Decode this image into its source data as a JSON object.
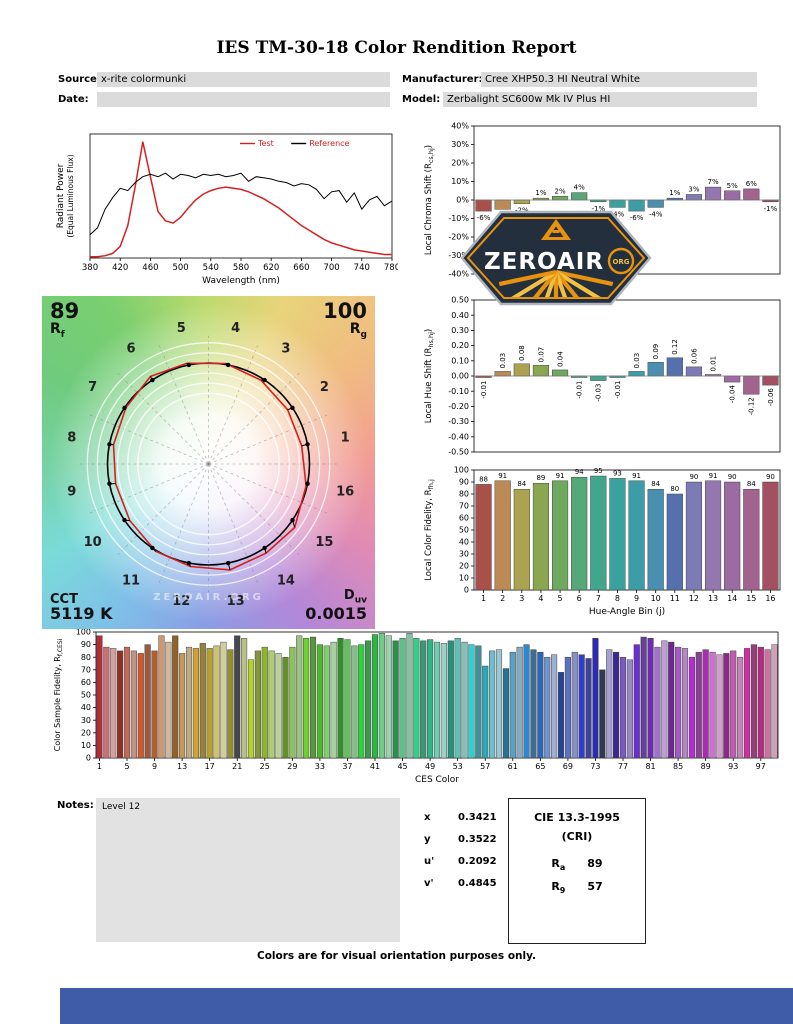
{
  "report": {
    "title": "IES TM-30-18 Color Rendition Report",
    "fields": {
      "source_label": "Source:",
      "source_value": "x-rite colormunki",
      "date_label": "Date:",
      "date_value": "",
      "manufacturer_label": "Manufacturer:",
      "manufacturer_value": "Cree XHP50.3 HI Neutral White",
      "model_label": "Model:",
      "model_value": "Zerbalight SC600w Mk IV Plus HI"
    },
    "notes_label": "Notes:",
    "notes_value": "Level 12",
    "footer": "Colors are for visual orientation purposes only."
  },
  "logo": {
    "text": "ZEROAIR",
    "suffix": "ORG",
    "navy": "#232F3D",
    "orange": "#E8930F",
    "gold": "#F2BF45"
  },
  "cvg": {
    "r_label": "R",
    "rf_value": "89",
    "rf_sub": "f",
    "rg_value": "100",
    "rg_sub": "g",
    "cct_label": "CCT",
    "cct_value": "5119 K",
    "duv_label": "D",
    "duv_sub": "uv",
    "duv_value": "0.0015",
    "bins": [
      "1",
      "2",
      "3",
      "4",
      "5",
      "6",
      "7",
      "8",
      "9",
      "10",
      "11",
      "12",
      "13",
      "14",
      "15",
      "16"
    ],
    "test_radii": [
      0.94,
      0.95,
      0.98,
      1.01,
      1.02,
      1.04,
      0.99,
      0.96,
      0.94,
      0.96,
      1.01,
      1.03,
      1.07,
      1.05,
      1.06,
      0.99
    ],
    "watermark": "ZEROAIR.ORG"
  },
  "chromaticity": {
    "rows": [
      {
        "label": "x",
        "value": "0.3421"
      },
      {
        "label": "y",
        "value": "0.3522"
      },
      {
        "label": "u'",
        "value": "0.2092"
      },
      {
        "label": "v'",
        "value": "0.4845"
      }
    ]
  },
  "cie": {
    "line1": "CIE 13.3-1995",
    "line2": "(CRI)",
    "rows": [
      {
        "label": "R",
        "sub": "a",
        "value": "89"
      },
      {
        "label": "R",
        "sub": "9",
        "value": "57"
      }
    ]
  },
  "bin_colors": [
    "#A9504A",
    "#BC8A54",
    "#ABA351",
    "#8BA650",
    "#6FA85F",
    "#57A878",
    "#42A68C",
    "#39A29E",
    "#3C9DA8",
    "#4B8FB0",
    "#5571AD",
    "#7D7BB5",
    "#9377AE",
    "#9C6BA4",
    "#A2638E",
    "#A25062"
  ],
  "chart_data": [
    {
      "id": "spd",
      "type": "line",
      "xlabel": "Wavelength (nm)",
      "ylabel_lines": [
        "Radiant Power",
        "(Equal Luminous Flux)"
      ],
      "x": [
        380,
        390,
        400,
        410,
        420,
        430,
        440,
        450,
        460,
        470,
        480,
        490,
        500,
        510,
        520,
        530,
        540,
        550,
        560,
        570,
        580,
        590,
        600,
        610,
        620,
        630,
        640,
        650,
        660,
        670,
        680,
        690,
        700,
        710,
        720,
        730,
        740,
        750,
        760,
        770,
        780
      ],
      "xticks": [
        380,
        420,
        460,
        500,
        540,
        580,
        620,
        660,
        700,
        740,
        780
      ],
      "ylim": [
        0,
        1.05
      ],
      "legend_text_color": "#CC2222",
      "series": [
        {
          "name": "Test",
          "color": "#D62020",
          "values": [
            0.01,
            0.01,
            0.02,
            0.04,
            0.1,
            0.28,
            0.62,
            1.0,
            0.7,
            0.4,
            0.32,
            0.3,
            0.35,
            0.43,
            0.5,
            0.55,
            0.58,
            0.6,
            0.61,
            0.6,
            0.59,
            0.57,
            0.54,
            0.51,
            0.47,
            0.43,
            0.38,
            0.33,
            0.28,
            0.24,
            0.2,
            0.16,
            0.13,
            0.11,
            0.09,
            0.07,
            0.06,
            0.05,
            0.04,
            0.03,
            0.03
          ]
        },
        {
          "name": "Reference",
          "color": "#000000",
          "values": [
            0.2,
            0.26,
            0.42,
            0.52,
            0.6,
            0.58,
            0.65,
            0.7,
            0.72,
            0.7,
            0.73,
            0.68,
            0.72,
            0.71,
            0.69,
            0.72,
            0.71,
            0.72,
            0.7,
            0.71,
            0.73,
            0.66,
            0.7,
            0.69,
            0.68,
            0.66,
            0.65,
            0.62,
            0.64,
            0.63,
            0.59,
            0.51,
            0.57,
            0.58,
            0.48,
            0.56,
            0.42,
            0.5,
            0.53,
            0.45,
            0.49
          ]
        }
      ]
    },
    {
      "id": "chroma",
      "type": "bar",
      "ylabel_main": "Local Chroma Shift (R",
      "ylabel_sub": "cs,hj",
      "ylabel_end": ")",
      "ylim": [
        -40,
        40
      ],
      "yticks": [
        "40%",
        "30%",
        "20%",
        "10%",
        "0%",
        "-10%",
        "-20%",
        "-30%",
        "-40%"
      ],
      "categories": [
        1,
        2,
        3,
        4,
        5,
        6,
        7,
        8,
        9,
        10,
        11,
        12,
        13,
        14,
        15,
        16
      ],
      "values": [
        -6,
        -5,
        -2,
        1,
        2,
        4,
        -1,
        -4,
        -6,
        -4,
        1,
        3,
        7,
        5,
        6,
        -1
      ],
      "labels": [
        "-6%",
        "-5%",
        "-2%",
        "1%",
        "2%",
        "4%",
        "-1%",
        "-4%",
        "-6%",
        "-4%",
        "1%",
        "3%",
        "7%",
        "5%",
        "6%",
        "-1%"
      ]
    },
    {
      "id": "hueshift",
      "type": "bar",
      "ylabel_main": "Local Hue Shift (R",
      "ylabel_sub": "hs,hj",
      "ylabel_end": ")",
      "ylim": [
        -0.5,
        0.5
      ],
      "yticks": [
        "0.50",
        "0.40",
        "0.30",
        "0.20",
        "0.10",
        "0.00",
        "-0.10",
        "-0.20",
        "-0.30",
        "-0.40",
        "-0.50"
      ],
      "categories": [
        1,
        2,
        3,
        4,
        5,
        6,
        7,
        8,
        9,
        10,
        11,
        12,
        13,
        14,
        15,
        16
      ],
      "values": [
        -0.01,
        0.03,
        0.08,
        0.07,
        0.04,
        -0.01,
        -0.03,
        -0.01,
        0.03,
        0.09,
        0.12,
        0.06,
        0.01,
        -0.04,
        -0.12,
        -0.06
      ],
      "labels": [
        "-0.01",
        "0.03",
        "0.08",
        "0.07",
        "0.04",
        "-0.01",
        "-0.03",
        "-0.01",
        "0.03",
        "0.09",
        "0.12",
        "0.06",
        "0.01",
        "-0.04",
        "-0.12",
        "-0.06"
      ]
    },
    {
      "id": "fidelity",
      "type": "bar",
      "ylabel_main": "Local Color Fidelity, R",
      "ylabel_sub": "fh,j",
      "ylabel_end": "",
      "xlabel": "Hue-Angle Bin (j)",
      "ylim": [
        0,
        100
      ],
      "yticks": [
        "100",
        "90",
        "80",
        "70",
        "60",
        "50",
        "40",
        "30",
        "20",
        "10",
        "0"
      ],
      "xticks": [
        "1",
        "2",
        "3",
        "4",
        "5",
        "6",
        "7",
        "8",
        "9",
        "10",
        "11",
        "12",
        "13",
        "14",
        "15",
        "16"
      ],
      "values": [
        88,
        91,
        84,
        89,
        91,
        94,
        95,
        93,
        91,
        84,
        80,
        90,
        91,
        90,
        84,
        90
      ],
      "labels": [
        "88",
        "91",
        "84",
        "89",
        "91",
        "94",
        "95",
        "93",
        "91",
        "84",
        "80",
        "90",
        "91",
        "90",
        "84",
        "90"
      ]
    },
    {
      "id": "ces",
      "type": "bar",
      "ylabel_main": "Color Sample Fidelity, R",
      "ylabel_sub": "f,CESi",
      "ylabel_end": "",
      "xlabel": "CES Color",
      "ylim": [
        0,
        100
      ],
      "yticks": [
        "100",
        "90",
        "80",
        "70",
        "60",
        "50",
        "40",
        "30",
        "20",
        "10",
        "0"
      ],
      "xticks": [
        "1",
        "5",
        "9",
        "13",
        "17",
        "21",
        "25",
        "29",
        "33",
        "37",
        "41",
        "45",
        "49",
        "53",
        "57",
        "61",
        "65",
        "69",
        "73",
        "77",
        "81",
        "85",
        "89",
        "93",
        "97"
      ],
      "values": [
        97,
        88,
        87,
        85,
        88,
        85,
        83,
        90,
        85,
        97,
        92,
        97,
        83,
        88,
        87,
        91,
        87,
        89,
        92,
        86,
        97,
        95,
        78,
        85,
        88,
        85,
        83,
        80,
        88,
        97,
        95,
        96,
        90,
        89,
        92,
        95,
        94,
        89,
        90,
        93,
        98,
        99,
        97,
        93,
        95,
        99,
        95,
        93,
        94,
        92,
        91,
        93,
        95,
        92,
        90,
        89,
        73,
        85,
        86,
        71,
        84,
        88,
        90,
        86,
        84,
        80,
        82,
        68,
        80,
        84,
        82,
        79,
        95,
        70,
        86,
        84,
        80,
        78,
        90,
        96,
        95,
        88,
        93,
        92,
        88,
        87,
        80,
        84,
        86,
        84,
        82,
        83,
        85,
        80,
        87,
        90,
        88,
        86,
        90
      ]
    }
  ]
}
